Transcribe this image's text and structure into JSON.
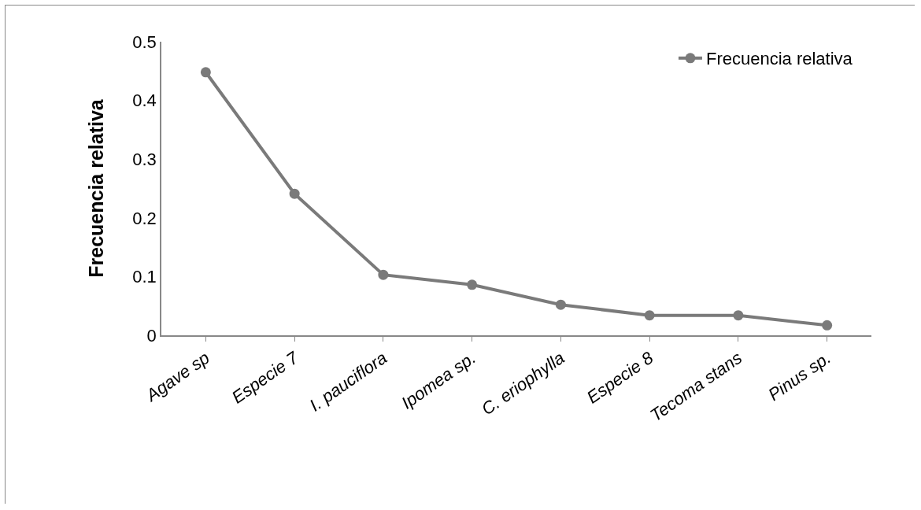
{
  "chart_data": {
    "type": "line",
    "ylabel": "Frecuencia relativa",
    "categories": [
      "Agave sp",
      "Especie 7",
      "I. pauciflora",
      "Ipomea sp.",
      "C. eriophylla",
      "Especie 8",
      "Tecoma stans",
      "Pinus sp."
    ],
    "series": [
      {
        "name": "Frecuencia relativa",
        "color": "#7a7a7a",
        "values": [
          0.448,
          0.241,
          0.103,
          0.086,
          0.052,
          0.034,
          0.034,
          0.017
        ]
      }
    ],
    "ylim": [
      0,
      0.5
    ],
    "yticks": [
      0,
      0.1,
      0.2,
      0.3,
      0.4,
      0.5
    ],
    "grid": false,
    "legend": "top right",
    "marker": "circle",
    "line_style": "solid"
  }
}
